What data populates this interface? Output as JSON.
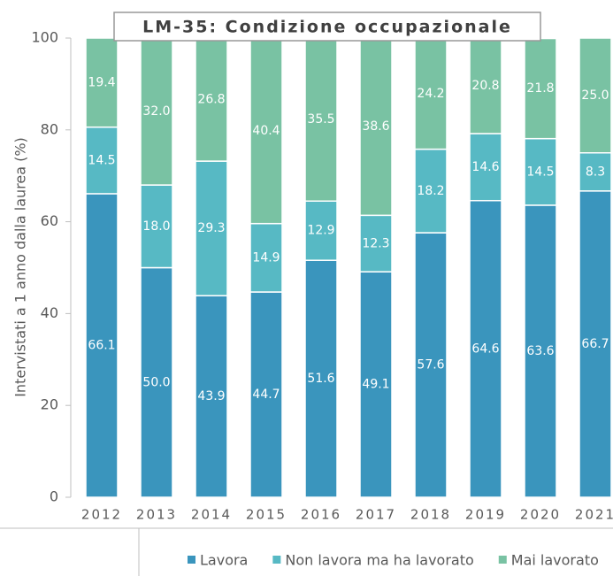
{
  "chart_data": {
    "type": "stacked_bar",
    "title": "LM-35: Condizione occupazionale",
    "y_label": "Intervistati a 1 anno dalla laurea (%)",
    "categories": [
      "2012",
      "2013",
      "2014",
      "2015",
      "2016",
      "2017",
      "2018",
      "2019",
      "2020",
      "2021"
    ],
    "series": [
      {
        "name": "Lavora",
        "color": "#3a95bd",
        "values": [
          66.1,
          50.0,
          43.9,
          44.7,
          51.6,
          49.1,
          57.6,
          64.6,
          63.6,
          66.7
        ],
        "value_labels": [
          "66.1",
          "50.0",
          "43.9",
          "44.7",
          "51.6",
          "49.1",
          "57.6",
          "64.6",
          "63.6",
          "66.7"
        ]
      },
      {
        "name": "Non lavora ma ha lavorato",
        "color": "#57b9c4",
        "values": [
          14.5,
          18.0,
          29.3,
          14.9,
          12.9,
          12.3,
          18.2,
          14.6,
          14.5,
          8.3
        ],
        "value_labels": [
          "14.5",
          "18.0",
          "29.3",
          "14.9",
          "12.9",
          "12.3",
          "18.2",
          "14.6",
          "14.5",
          "8.3"
        ]
      },
      {
        "name": "Mai lavorato",
        "color": "#79c2a3",
        "values": [
          19.4,
          32.0,
          26.8,
          40.4,
          35.5,
          38.6,
          24.2,
          20.8,
          21.8,
          25.0
        ],
        "value_labels": [
          "19.4",
          "32.0",
          "26.8",
          "40.4",
          "35.5",
          "38.6",
          "24.2",
          "20.8",
          "21.8",
          "25.0"
        ]
      }
    ],
    "ylim": [
      0,
      100
    ],
    "yticks": [
      0,
      20,
      40,
      60,
      80,
      100
    ],
    "legend": "bottom"
  }
}
